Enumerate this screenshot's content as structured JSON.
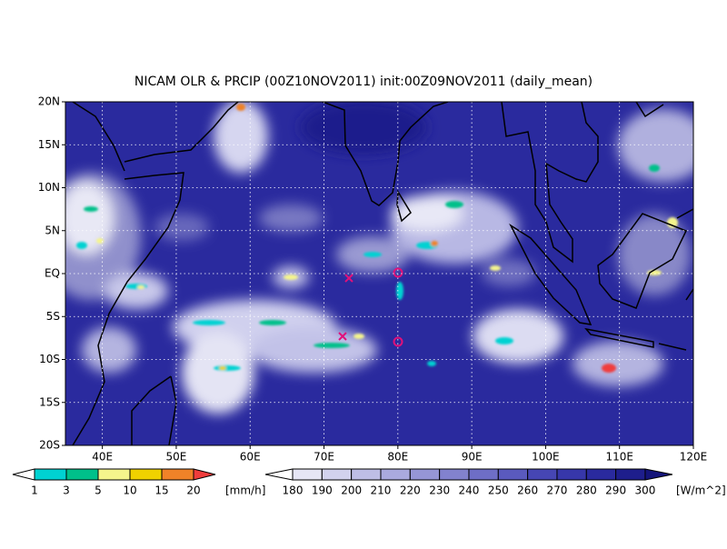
{
  "title": "NICAM OLR & PRCIP (00Z10NOV2011) init:00Z09NOV2011 (daily_mean)",
  "map": {
    "lon_range": [
      35,
      120
    ],
    "lat_range": [
      -20,
      20
    ],
    "lon_ticks": [
      {
        "value": 40,
        "label": "40E"
      },
      {
        "value": 50,
        "label": "50E"
      },
      {
        "value": 60,
        "label": "60E"
      },
      {
        "value": 70,
        "label": "70E"
      },
      {
        "value": 80,
        "label": "80E"
      },
      {
        "value": 90,
        "label": "90E"
      },
      {
        "value": 100,
        "label": "100E"
      },
      {
        "value": 110,
        "label": "110E"
      },
      {
        "value": 120,
        "label": "120E"
      }
    ],
    "lat_ticks": [
      {
        "value": 20,
        "label": "20N"
      },
      {
        "value": 15,
        "label": "15N"
      },
      {
        "value": 10,
        "label": "10N"
      },
      {
        "value": 5,
        "label": "5N"
      },
      {
        "value": 0,
        "label": "EQ"
      },
      {
        "value": -5,
        "label": "5S"
      },
      {
        "value": -10,
        "label": "10S"
      },
      {
        "value": -15,
        "label": "15S"
      },
      {
        "value": -20,
        "label": "20S"
      }
    ]
  },
  "legends": [
    {
      "unit": "[mm/h]",
      "levels": [
        1,
        3,
        5,
        10,
        15,
        20
      ],
      "colors": [
        "#ffffff",
        "#00d2d2",
        "#00c08a",
        "#f5f58c",
        "#f0d200",
        "#f08228",
        "#f03c3c"
      ]
    },
    {
      "unit": "[W/m^2]",
      "levels": [
        180,
        190,
        200,
        210,
        220,
        230,
        240,
        250,
        260,
        270,
        280,
        290,
        300
      ],
      "colors": [
        "#ffffff",
        "#e6e6f5",
        "#d2d2ee",
        "#bebee6",
        "#aaaade",
        "#9696d6",
        "#8282ce",
        "#6e6ec6",
        "#5a5abe",
        "#4646b4",
        "#3737aa",
        "#2a2a9e",
        "#1e1e8c",
        "#14147a"
      ]
    }
  ]
}
